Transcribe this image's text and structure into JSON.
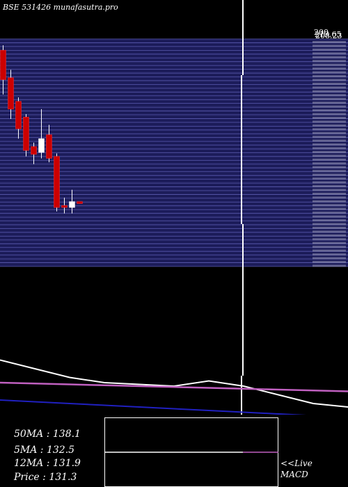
{
  "header": {
    "title": "BSE 531426  munafasutra.pro",
    "top_price_labels": [
      "200",
      "213.65",
      "208.23"
    ]
  },
  "grid": {
    "row_count": 60
  },
  "colors": {
    "background": "#000000",
    "grid_band": "#1c1c5a",
    "grid_line": "#5a5ab0",
    "bear": "#cc0000",
    "bull": "#ffffff",
    "ma_line": "#ffffff",
    "ma_purple": "#c060c0",
    "ma_blue": "#2020c0"
  },
  "chart_data": [
    {
      "type": "candlestick",
      "title": "BSE 531426",
      "ylim": [
        0,
        230
      ],
      "candles": [
        {
          "open": 220,
          "close": 190,
          "high": 225,
          "low": 175
        },
        {
          "open": 192,
          "close": 160,
          "high": 200,
          "low": 150
        },
        {
          "open": 168,
          "close": 140,
          "high": 172,
          "low": 130
        },
        {
          "open": 152,
          "close": 118,
          "high": 155,
          "low": 112
        },
        {
          "open": 122,
          "close": 114,
          "high": 126,
          "low": 104
        },
        {
          "open": 116,
          "close": 130,
          "high": 160,
          "low": 110
        },
        {
          "open": 134,
          "close": 110,
          "high": 144,
          "low": 106
        },
        {
          "open": 112,
          "close": 60,
          "high": 115,
          "low": 56
        },
        {
          "open": 62,
          "close": 60,
          "high": 70,
          "low": 54
        },
        {
          "open": 60,
          "close": 66,
          "high": 78,
          "low": 54
        },
        {
          "open": 66,
          "close": 64,
          "high": 66,
          "low": 64
        }
      ]
    },
    {
      "type": "line",
      "series": [
        {
          "name": "50MA",
          "values": [
            6.2,
            6.1,
            6.0,
            5.9,
            5.8,
            5.7,
            5.6,
            5.5,
            5.4,
            5.3,
            5.2
          ]
        },
        {
          "name": "5MA",
          "values": [
            8.5,
            8.0,
            7.5,
            7.2,
            7.1,
            7.0,
            7.3,
            7.0,
            6.5,
            6.0,
            5.8
          ]
        },
        {
          "name": "12MA",
          "values": [
            7.2,
            7.15,
            7.1,
            7.05,
            7.0,
            6.95,
            6.9,
            6.85,
            6.8,
            6.75,
            6.7
          ]
        }
      ]
    }
  ],
  "stats": {
    "ma50": "50MA : 138.1",
    "ma5": "5MA : 132.5",
    "ma12": "12MA : 131.9",
    "price": "Price   : 131.3"
  },
  "footer": {
    "live_link": "<<Live",
    "macd_label": "MACD"
  }
}
